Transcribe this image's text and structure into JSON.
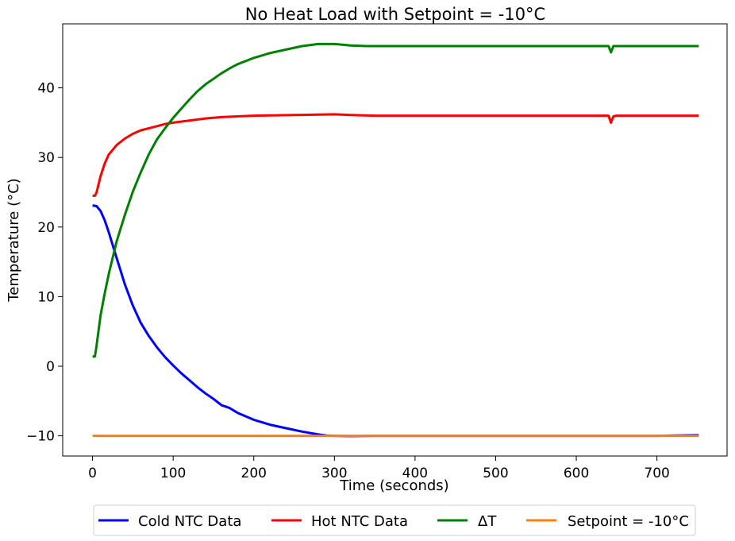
{
  "chart_data": {
    "type": "line",
    "title": "No Heat Load with Setpoint = -10°C",
    "xlabel": "Time (seconds)",
    "ylabel": "Temperature (°C)",
    "xlim": [
      -37,
      787
    ],
    "ylim": [
      -12.9,
      49.2
    ],
    "xticks": [
      0,
      100,
      200,
      300,
      400,
      500,
      600,
      700
    ],
    "xtick_labels": [
      "0",
      "100",
      "200",
      "300",
      "400",
      "500",
      "600",
      "700"
    ],
    "yticks": [
      -10,
      0,
      10,
      20,
      30,
      40
    ],
    "ytick_labels": [
      "−10",
      "0",
      "10",
      "20",
      "30",
      "40"
    ],
    "grid": false,
    "legend_position": "bottom-center",
    "series": [
      {
        "name": "Cold NTC Data",
        "color": "#0000ff",
        "x": [
          0,
          5,
          10,
          15,
          20,
          30,
          40,
          50,
          60,
          70,
          80,
          90,
          100,
          110,
          120,
          130,
          140,
          150,
          160,
          170,
          180,
          200,
          220,
          240,
          260,
          280,
          290,
          300,
          320,
          350,
          400,
          450,
          500,
          550,
          600,
          650,
          700,
          752
        ],
        "y": [
          23.1,
          23.0,
          22.3,
          21.0,
          19.3,
          15.5,
          11.8,
          8.7,
          6.2,
          4.3,
          2.7,
          1.3,
          0.1,
          -1.0,
          -2.0,
          -3.0,
          -3.9,
          -4.7,
          -5.6,
          -6.0,
          -6.7,
          -7.7,
          -8.4,
          -8.9,
          -9.4,
          -9.8,
          -9.95,
          -10.0,
          -10.05,
          -10.0,
          -10.0,
          -10.0,
          -10.0,
          -10.0,
          -10.0,
          -10.0,
          -10.0,
          -9.9
        ]
      },
      {
        "name": "Hot NTC Data",
        "color": "#ff0000",
        "x": [
          0,
          3,
          5,
          10,
          15,
          20,
          30,
          40,
          50,
          60,
          70,
          80,
          90,
          100,
          120,
          140,
          160,
          180,
          200,
          250,
          300,
          320,
          350,
          400,
          500,
          600,
          640,
          643,
          646,
          650,
          700,
          752
        ],
        "y": [
          24.5,
          24.5,
          25.0,
          27.3,
          29.1,
          30.4,
          31.8,
          32.7,
          33.4,
          33.9,
          34.2,
          34.5,
          34.8,
          35.0,
          35.3,
          35.6,
          35.8,
          35.9,
          36.0,
          36.1,
          36.2,
          36.1,
          36.0,
          36.0,
          36.0,
          36.0,
          36.0,
          35.0,
          35.9,
          36.0,
          36.0,
          36.0
        ]
      },
      {
        "name": "ΔT",
        "color": "#008000",
        "x": [
          0,
          3,
          5,
          10,
          15,
          20,
          30,
          40,
          50,
          60,
          70,
          80,
          90,
          100,
          110,
          120,
          130,
          140,
          150,
          160,
          170,
          180,
          200,
          220,
          240,
          260,
          280,
          300,
          310,
          320,
          340,
          400,
          500,
          600,
          640,
          643,
          646,
          650,
          700,
          752
        ],
        "y": [
          1.4,
          1.4,
          3.0,
          7.3,
          10.4,
          13.2,
          18.0,
          21.7,
          25.1,
          27.9,
          30.5,
          32.6,
          34.2,
          35.7,
          37.0,
          38.3,
          39.5,
          40.5,
          41.3,
          42.1,
          42.8,
          43.4,
          44.3,
          45.0,
          45.5,
          46.0,
          46.3,
          46.3,
          46.2,
          46.1,
          46.0,
          46.0,
          46.0,
          46.0,
          46.0,
          45.1,
          46.0,
          46.0,
          46.0,
          46.0
        ]
      },
      {
        "name": "Setpoint = -10°C",
        "color": "#ff7f0e",
        "x": [
          0,
          752
        ],
        "y": [
          -10,
          -10
        ]
      }
    ]
  }
}
